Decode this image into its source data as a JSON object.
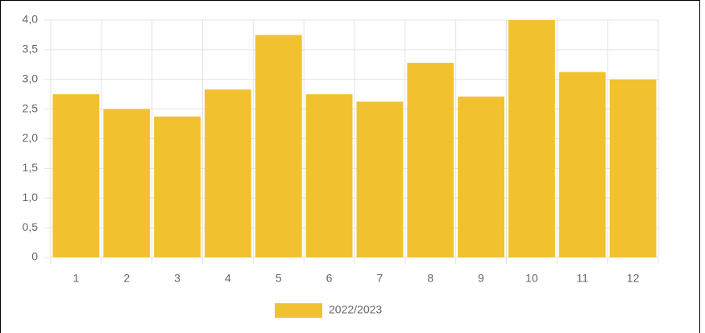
{
  "chart_data": {
    "type": "bar",
    "categories": [
      "1",
      "2",
      "3",
      "4",
      "5",
      "6",
      "7",
      "8",
      "9",
      "10",
      "11",
      "12"
    ],
    "series": [
      {
        "name": "2022/2023",
        "color": "#f2c12f",
        "values": [
          2.75,
          2.5,
          2.375,
          2.83,
          3.75,
          2.75,
          2.625,
          3.28,
          2.71,
          4.0,
          3.125,
          3.0
        ]
      }
    ],
    "ylim": [
      0,
      4
    ],
    "yticks": [
      0,
      {
        "value": 0.5,
        "label": "0,5"
      },
      {
        "value": 1,
        "label": "1,0"
      },
      {
        "value": 1.5,
        "label": "1,5"
      },
      {
        "value": 2,
        "label": "2,0"
      },
      {
        "value": 2.5,
        "label": "2,5"
      },
      {
        "value": 3,
        "label": "3,0"
      },
      {
        "value": 3.5,
        "label": "3,5"
      },
      {
        "value": 4,
        "label": "4,0"
      }
    ],
    "grid": true,
    "legend": "bottom"
  }
}
